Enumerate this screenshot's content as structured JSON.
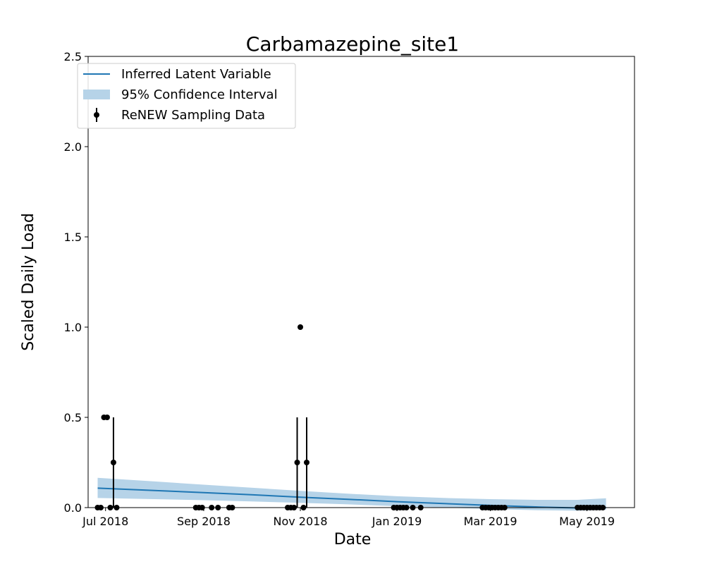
{
  "chart_data": {
    "type": "line",
    "title": "Carbamazepine_site1",
    "xlabel": "Date",
    "ylabel": "Scaled Daily Load",
    "ylim": [
      0,
      2.5
    ],
    "xlim": [
      "2018-06-20",
      "2019-05-31"
    ],
    "grid": false,
    "legend_position": "top-left",
    "colors": {
      "line": "#1f77b4",
      "band": "#b6d3e8",
      "points": "#000000"
    },
    "x_ticks": [
      {
        "date": "2018-07-01",
        "label": "Jul 2018"
      },
      {
        "date": "2018-09-01",
        "label": "Sep 2018"
      },
      {
        "date": "2018-11-01",
        "label": "Nov 2018"
      },
      {
        "date": "2019-01-01",
        "label": "Jan 2019"
      },
      {
        "date": "2019-03-01",
        "label": "Mar 2019"
      },
      {
        "date": "2019-05-01",
        "label": "May 2019"
      }
    ],
    "y_ticks": [
      {
        "value": 0.0,
        "label": "0.0"
      },
      {
        "value": 0.5,
        "label": "0.5"
      },
      {
        "value": 1.0,
        "label": "1.0"
      },
      {
        "value": 1.5,
        "label": "1.5"
      },
      {
        "value": 2.0,
        "label": "2.0"
      },
      {
        "value": 2.5,
        "label": "2.5"
      }
    ],
    "legend": [
      {
        "label": "Inferred Latent Variable",
        "kind": "line"
      },
      {
        "label": "95% Confidence Interval",
        "kind": "band"
      },
      {
        "label": "ReNEW Sampling Data",
        "kind": "errorbar"
      }
    ],
    "series": [
      {
        "name": "Inferred Latent Variable",
        "kind": "line",
        "points": [
          {
            "x": "2018-06-26",
            "y": 0.108
          },
          {
            "x": "2018-08-01",
            "y": 0.095
          },
          {
            "x": "2018-09-01",
            "y": 0.083
          },
          {
            "x": "2018-10-01",
            "y": 0.071
          },
          {
            "x": "2018-11-01",
            "y": 0.058
          },
          {
            "x": "2018-12-01",
            "y": 0.046
          },
          {
            "x": "2019-01-01",
            "y": 0.033
          },
          {
            "x": "2019-02-01",
            "y": 0.022
          },
          {
            "x": "2019-03-01",
            "y": 0.012
          },
          {
            "x": "2019-04-01",
            "y": 0.003
          },
          {
            "x": "2019-04-25",
            "y": -0.002
          },
          {
            "x": "2019-05-13",
            "y": 0.0
          }
        ]
      },
      {
        "name": "95% Confidence Interval",
        "kind": "band",
        "points": [
          {
            "x": "2018-06-26",
            "lower": 0.053,
            "upper": 0.165
          },
          {
            "x": "2018-08-01",
            "lower": 0.047,
            "upper": 0.145
          },
          {
            "x": "2018-09-01",
            "lower": 0.041,
            "upper": 0.127
          },
          {
            "x": "2018-10-01",
            "lower": 0.034,
            "upper": 0.11
          },
          {
            "x": "2018-11-01",
            "lower": 0.026,
            "upper": 0.093
          },
          {
            "x": "2018-12-01",
            "lower": 0.018,
            "upper": 0.077
          },
          {
            "x": "2019-01-01",
            "lower": 0.008,
            "upper": 0.063
          },
          {
            "x": "2019-02-01",
            "lower": 0.0,
            "upper": 0.053
          },
          {
            "x": "2019-03-01",
            "lower": -0.008,
            "upper": 0.047
          },
          {
            "x": "2019-04-01",
            "lower": -0.015,
            "upper": 0.043
          },
          {
            "x": "2019-04-25",
            "lower": -0.017,
            "upper": 0.043
          },
          {
            "x": "2019-05-13",
            "lower": -0.012,
            "upper": 0.052
          }
        ]
      },
      {
        "name": "ReNEW Sampling Data",
        "kind": "errorbar",
        "points": [
          {
            "x": "2018-06-26",
            "y": 0.0
          },
          {
            "x": "2018-06-28",
            "y": 0.0
          },
          {
            "x": "2018-06-30",
            "y": 0.5
          },
          {
            "x": "2018-07-02",
            "y": 0.5
          },
          {
            "x": "2018-07-04",
            "y": 0.0
          },
          {
            "x": "2018-07-06",
            "y": 0.25,
            "yerr": 0.25
          },
          {
            "x": "2018-07-08",
            "y": 0.0
          },
          {
            "x": "2018-08-27",
            "y": 0.0
          },
          {
            "x": "2018-08-29",
            "y": 0.0
          },
          {
            "x": "2018-08-31",
            "y": 0.0
          },
          {
            "x": "2018-09-06",
            "y": 0.0
          },
          {
            "x": "2018-09-10",
            "y": 0.0
          },
          {
            "x": "2018-09-17",
            "y": 0.0
          },
          {
            "x": "2018-09-19",
            "y": 0.0
          },
          {
            "x": "2018-10-24",
            "y": 0.0
          },
          {
            "x": "2018-10-26",
            "y": 0.0
          },
          {
            "x": "2018-10-28",
            "y": 0.0
          },
          {
            "x": "2018-10-30",
            "y": 0.25,
            "yerr": 0.25
          },
          {
            "x": "2018-11-01",
            "y": 1.0
          },
          {
            "x": "2018-11-03",
            "y": 0.0
          },
          {
            "x": "2018-11-05",
            "y": 0.25,
            "yerr": 0.25
          },
          {
            "x": "2018-12-30",
            "y": 0.0
          },
          {
            "x": "2019-01-01",
            "y": 0.0
          },
          {
            "x": "2019-01-03",
            "y": 0.0
          },
          {
            "x": "2019-01-05",
            "y": 0.0
          },
          {
            "x": "2019-01-07",
            "y": 0.0
          },
          {
            "x": "2019-01-11",
            "y": 0.0
          },
          {
            "x": "2019-01-16",
            "y": 0.0
          },
          {
            "x": "2019-02-24",
            "y": 0.0
          },
          {
            "x": "2019-02-26",
            "y": 0.0
          },
          {
            "x": "2019-02-28",
            "y": 0.0
          },
          {
            "x": "2019-03-02",
            "y": 0.0
          },
          {
            "x": "2019-03-04",
            "y": 0.0
          },
          {
            "x": "2019-03-06",
            "y": 0.0
          },
          {
            "x": "2019-03-08",
            "y": 0.0
          },
          {
            "x": "2019-03-10",
            "y": 0.0
          },
          {
            "x": "2019-04-25",
            "y": 0.0
          },
          {
            "x": "2019-04-27",
            "y": 0.0
          },
          {
            "x": "2019-04-29",
            "y": 0.0
          },
          {
            "x": "2019-05-01",
            "y": 0.0
          },
          {
            "x": "2019-05-03",
            "y": 0.0
          },
          {
            "x": "2019-05-05",
            "y": 0.0
          },
          {
            "x": "2019-05-07",
            "y": 0.0
          },
          {
            "x": "2019-05-09",
            "y": 0.0
          },
          {
            "x": "2019-05-11",
            "y": 0.0
          }
        ]
      }
    ]
  }
}
